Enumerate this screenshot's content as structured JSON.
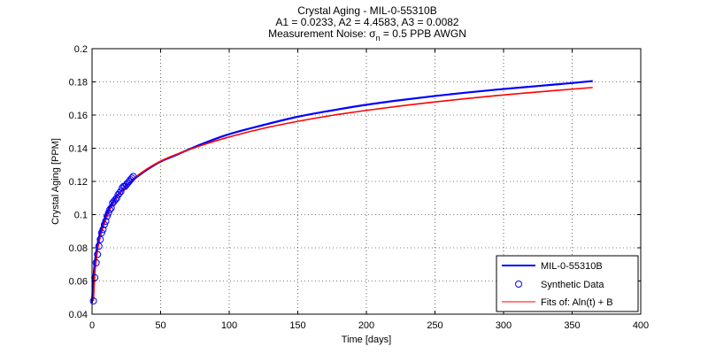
{
  "figure": {
    "title_line1": "Crystal Aging - MIL-0-55310B",
    "title_line2": "A1 = 0.0233, A2 = 4.4583, A3 = 0.0082",
    "title_line3_prefix": "Measurement Noise: σ",
    "title_line3_sub": "n",
    "title_line3_suffix": " = 0.5 PPB AWGN"
  },
  "colors": {
    "model_line": "#0000ff",
    "fit_line": "#ff0000",
    "markers": "#0000ff",
    "grid": "#000000"
  },
  "chart_data": {
    "type": "line",
    "xlabel": "Time [days]",
    "ylabel": "Crystal Aging [PPM]",
    "xlim": [
      0,
      400
    ],
    "ylim": [
      0.04,
      0.2
    ],
    "xticks": [
      0,
      50,
      100,
      150,
      200,
      250,
      300,
      350,
      400
    ],
    "yticks": [
      0.04,
      0.06,
      0.08,
      0.1,
      0.12,
      0.14,
      0.16,
      0.18,
      0.2
    ],
    "xtick_labels": [
      "0",
      "50",
      "100",
      "150",
      "200",
      "250",
      "300",
      "350",
      "400"
    ],
    "ytick_labels": [
      "0.04",
      "0.06",
      "0.08",
      "0.1",
      "0.12",
      "0.14",
      "0.16",
      "0.18",
      "0.2"
    ],
    "grid": true,
    "legend_position": "bottom-right",
    "series": [
      {
        "name": "MIL-0-55310B",
        "style": "line",
        "color": "#0000ff",
        "x": [
          0,
          1,
          2,
          3,
          4,
          5,
          6,
          8,
          10,
          12,
          15,
          20,
          25,
          30,
          40,
          50,
          60,
          80,
          100,
          125,
          150,
          175,
          200,
          225,
          250,
          275,
          300,
          325,
          350,
          365
        ],
        "y": [
          0.047,
          0.062,
          0.071,
          0.077,
          0.082,
          0.086,
          0.0895,
          0.095,
          0.0995,
          0.103,
          0.1075,
          0.113,
          0.1175,
          0.121,
          0.127,
          0.132,
          0.1355,
          0.1425,
          0.1485,
          0.154,
          0.159,
          0.1628,
          0.1662,
          0.169,
          0.1715,
          0.1737,
          0.1757,
          0.1775,
          0.1793,
          0.1805
        ]
      },
      {
        "name": "Synthetic Data",
        "style": "markers",
        "color": "#0000ff",
        "x": [
          1,
          2,
          3,
          4,
          5,
          6,
          7,
          8,
          9,
          10,
          11,
          12,
          13,
          14,
          15,
          16,
          17,
          18,
          19,
          20,
          21,
          22,
          23,
          24,
          25,
          26,
          27,
          28,
          29,
          30
        ],
        "y": [
          0.048,
          0.062,
          0.071,
          0.076,
          0.081,
          0.085,
          0.089,
          0.091,
          0.094,
          0.096,
          0.099,
          0.101,
          0.103,
          0.104,
          0.107,
          0.108,
          0.109,
          0.11,
          0.112,
          0.113,
          0.114,
          0.116,
          0.117,
          0.117,
          0.118,
          0.119,
          0.12,
          0.121,
          0.122,
          0.123
        ]
      },
      {
        "name": "Fits of:  Aln(t) + B",
        "style": "line",
        "color": "#ff0000",
        "x": [
          1,
          2,
          3,
          4,
          5,
          6,
          8,
          10,
          12,
          15,
          20,
          25,
          30,
          40,
          50,
          60,
          80,
          100,
          125,
          150,
          175,
          200,
          225,
          250,
          275,
          300,
          325,
          350,
          365
        ],
        "y": [
          0.048,
          0.064,
          0.072,
          0.0785,
          0.083,
          0.0865,
          0.0925,
          0.097,
          0.1012,
          0.1062,
          0.1127,
          0.1175,
          0.1215,
          0.1275,
          0.1322,
          0.1358,
          0.1418,
          0.1468,
          0.152,
          0.1562,
          0.1598,
          0.1628,
          0.1655,
          0.1679,
          0.1701,
          0.1721,
          0.1739,
          0.1756,
          0.1766
        ]
      }
    ]
  }
}
